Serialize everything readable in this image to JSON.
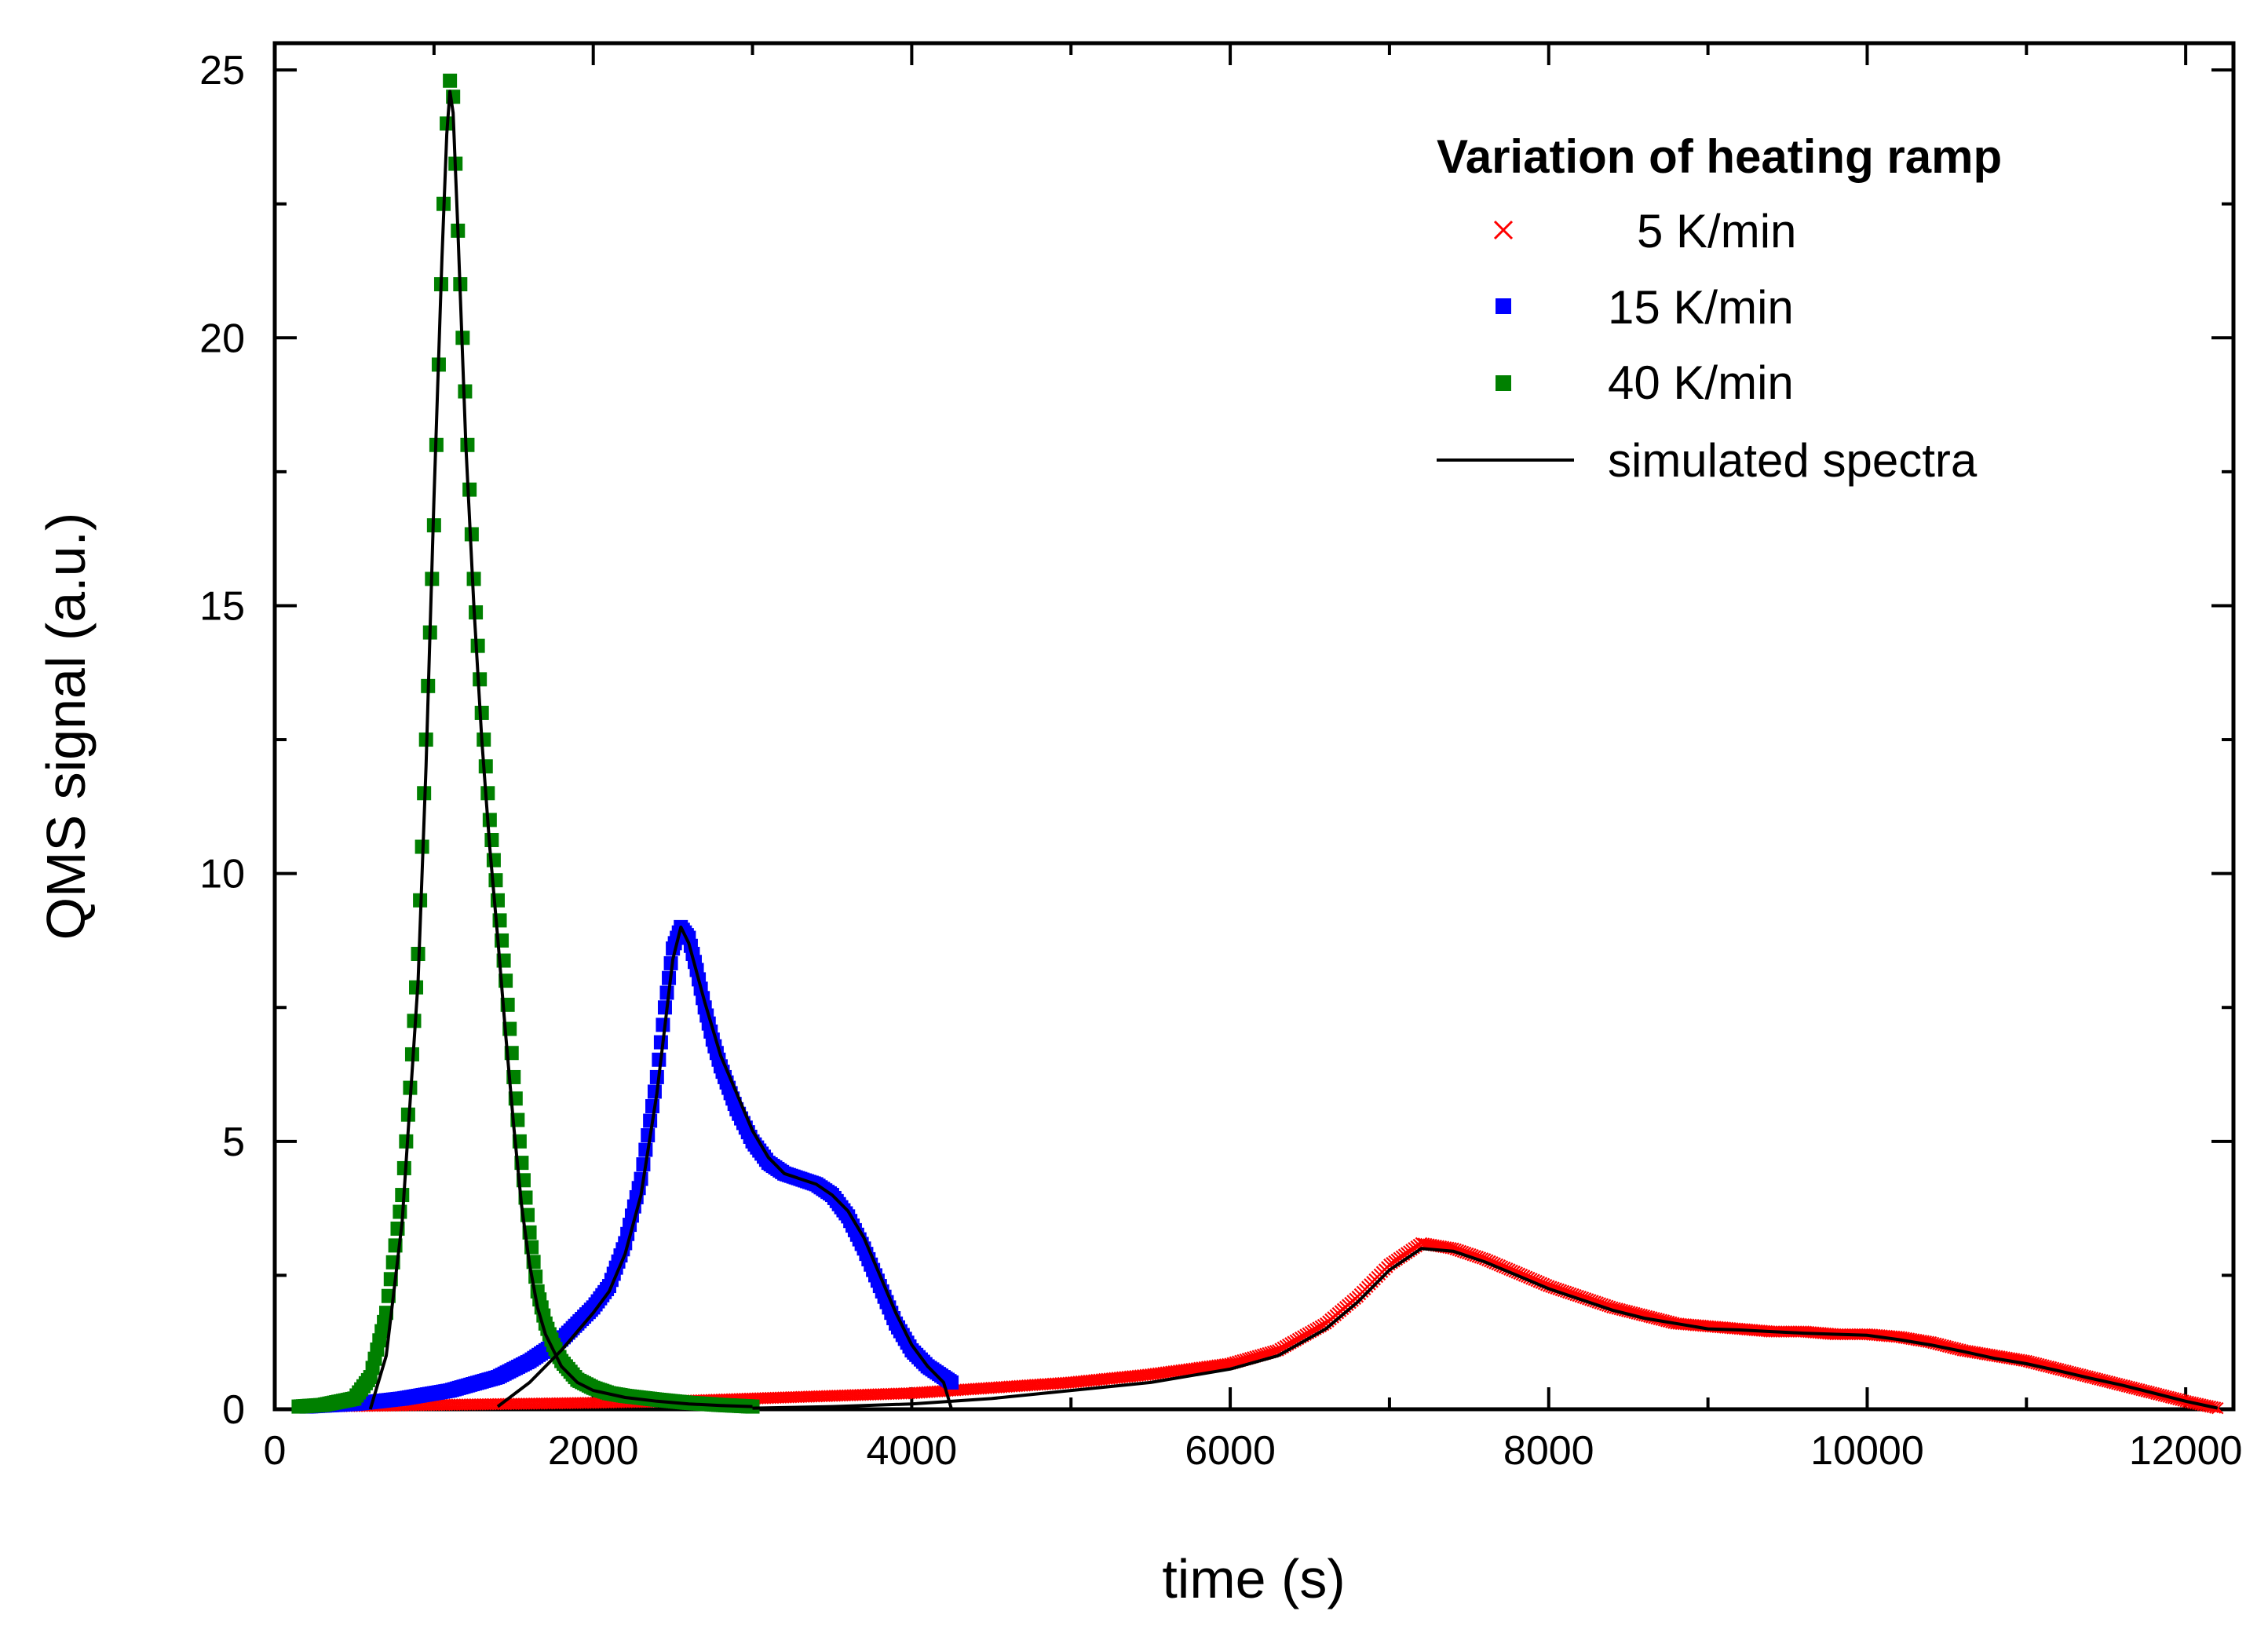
{
  "chart_data": {
    "type": "scatter",
    "title": "",
    "xlabel": "time (s)",
    "ylabel": "QMS signal (a.u.)",
    "xlim": [
      0,
      12300
    ],
    "ylim": [
      0,
      25.5
    ],
    "xticks": [
      0,
      2000,
      4000,
      6000,
      8000,
      10000,
      12000
    ],
    "xtick_labels": [
      "0",
      "2000",
      "4000",
      "6000",
      "8000",
      "10000",
      "12000"
    ],
    "yticks": [
      0,
      5,
      10,
      15,
      20,
      25
    ],
    "ytick_labels": [
      "0",
      "5",
      "10",
      "15",
      "20",
      "25"
    ],
    "grid": false,
    "legend_position": "top-right",
    "legend_title": "Variation of heating ramp",
    "series": [
      {
        "name": "5 K/min",
        "marker": "cross",
        "color": "#ff0000",
        "x": [
          150,
          500,
          1000,
          1500,
          2000,
          2500,
          3000,
          3500,
          4000,
          4500,
          5000,
          5500,
          6000,
          6300,
          6600,
          6800,
          7000,
          7200,
          7400,
          7600,
          7800,
          8000,
          8200,
          8400,
          8600,
          8800,
          9000,
          9200,
          9400,
          9600,
          9800,
          10000,
          10200,
          10400,
          10600,
          10800,
          11000,
          11200,
          11400,
          11600,
          11800,
          12000,
          12200
        ],
        "y": [
          0.05,
          0.06,
          0.08,
          0.1,
          0.12,
          0.15,
          0.2,
          0.25,
          0.3,
          0.4,
          0.5,
          0.65,
          0.85,
          1.1,
          1.6,
          2.1,
          2.7,
          3.1,
          3.0,
          2.8,
          2.55,
          2.3,
          2.1,
          1.9,
          1.75,
          1.6,
          1.55,
          1.5,
          1.45,
          1.45,
          1.4,
          1.4,
          1.35,
          1.25,
          1.1,
          1.0,
          0.9,
          0.75,
          0.6,
          0.45,
          0.3,
          0.15,
          0.02
        ]
      },
      {
        "name": "15 K/min",
        "marker": "square",
        "color": "#0000ff",
        "x": [
          200,
          500,
          800,
          1100,
          1400,
          1600,
          1800,
          2000,
          2100,
          2200,
          2300,
          2400,
          2450,
          2500,
          2550,
          2600,
          2650,
          2700,
          2750,
          2800,
          2850,
          2900,
          3000,
          3100,
          3200,
          3300,
          3400,
          3500,
          3600,
          3700,
          3800,
          3900,
          4000,
          4100,
          4200,
          4250
        ],
        "y": [
          0.05,
          0.1,
          0.2,
          0.35,
          0.6,
          0.9,
          1.3,
          1.9,
          2.3,
          3.1,
          4.3,
          6.2,
          7.5,
          8.6,
          9.0,
          8.8,
          8.2,
          7.5,
          6.9,
          6.4,
          6.0,
          5.6,
          5.0,
          4.6,
          4.4,
          4.3,
          4.2,
          4.0,
          3.6,
          3.0,
          2.3,
          1.6,
          1.1,
          0.8,
          0.6,
          0.5
        ]
      },
      {
        "name": "40 K/min",
        "marker": "square",
        "color": "#008000",
        "x": [
          150,
          300,
          500,
          600,
          700,
          800,
          850,
          900,
          950,
          1000,
          1030,
          1060,
          1080,
          1100,
          1120,
          1150,
          1180,
          1210,
          1250,
          1300,
          1350,
          1400,
          1450,
          1500,
          1550,
          1600,
          1650,
          1700,
          1750,
          1800,
          1900,
          2000,
          2100,
          2200,
          2400,
          2600,
          2800,
          3000
        ],
        "y": [
          0.05,
          0.08,
          0.2,
          0.6,
          1.8,
          4.0,
          6.0,
          8.5,
          12.5,
          16.5,
          19.5,
          22.5,
          24.0,
          24.8,
          24.5,
          22.0,
          20.0,
          18.0,
          15.5,
          13.0,
          11.0,
          9.5,
          8.0,
          6.2,
          4.6,
          3.3,
          2.2,
          1.6,
          1.2,
          0.9,
          0.55,
          0.4,
          0.3,
          0.25,
          0.18,
          0.12,
          0.08,
          0.05
        ]
      },
      {
        "name": "simulated spectra",
        "marker": "line",
        "color": "#000000",
        "segments": [
          {
            "x": [
              600,
              700,
              800,
              900,
              950,
              1000,
              1050,
              1080,
              1100,
              1120,
              1150,
              1200,
              1250,
              1300,
              1350,
              1400,
              1450,
              1500,
              1550,
              1600,
              1650,
              1700,
              1800,
              1900,
              2000,
              2200,
              2400,
              2600,
              2800,
              3000
            ],
            "y": [
              0.0,
              1.0,
              3.5,
              8.0,
              12.0,
              17.0,
              21.5,
              23.8,
              24.6,
              24.2,
              22.0,
              18.0,
              15.0,
              12.5,
              10.5,
              8.8,
              7.0,
              5.3,
              3.8,
              2.7,
              1.9,
              1.4,
              0.8,
              0.5,
              0.35,
              0.22,
              0.15,
              0.1,
              0.07,
              0.05
            ]
          },
          {
            "x": [
              1400,
              1600,
              1800,
              2000,
              2100,
              2200,
              2300,
              2400,
              2500,
              2550,
              2600,
              2700,
              2800,
              2900,
              3000,
              3100,
              3200,
              3300,
              3400,
              3500,
              3600,
              3700,
              3800,
              3900,
              4000,
              4100,
              4200,
              4250
            ],
            "y": [
              0.05,
              0.5,
              1.1,
              1.8,
              2.2,
              2.9,
              4.0,
              5.9,
              8.4,
              9.0,
              8.7,
              7.6,
              6.6,
              5.9,
              5.2,
              4.7,
              4.4,
              4.3,
              4.2,
              4.0,
              3.7,
              3.2,
              2.5,
              1.8,
              1.2,
              0.8,
              0.5,
              0.0
            ]
          },
          {
            "x": [
              3000,
              3500,
              4000,
              4500,
              5000,
              5500,
              6000,
              6300,
              6600,
              6800,
              7000,
              7200,
              7400,
              7600,
              7800,
              8000,
              8200,
              8400,
              8600,
              8800,
              9000,
              9200,
              9400,
              9600,
              9800,
              10000,
              10200,
              10400,
              10600,
              10800,
              11000,
              11200,
              11400,
              11600,
              11800,
              12000,
              12200
            ],
            "y": [
              0.02,
              0.05,
              0.1,
              0.2,
              0.35,
              0.5,
              0.75,
              1.0,
              1.5,
              2.0,
              2.6,
              3.0,
              2.95,
              2.75,
              2.5,
              2.25,
              2.05,
              1.85,
              1.7,
              1.6,
              1.5,
              1.48,
              1.45,
              1.42,
              1.4,
              1.38,
              1.3,
              1.2,
              1.08,
              0.95,
              0.85,
              0.72,
              0.58,
              0.45,
              0.3,
              0.15,
              0.02
            ]
          }
        ]
      }
    ]
  }
}
